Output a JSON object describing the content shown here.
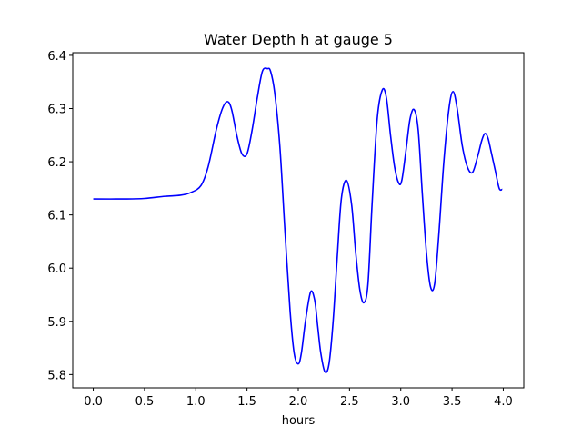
{
  "chart_data": {
    "type": "line",
    "title": "Water Depth h at gauge 5",
    "xlabel": "hours",
    "ylabel": "",
    "xlim": [
      -0.2,
      4.2
    ],
    "ylim": [
      5.775,
      6.405
    ],
    "xticks": [
      0.0,
      0.5,
      1.0,
      1.5,
      2.0,
      2.5,
      3.0,
      3.5,
      4.0
    ],
    "xtick_labels": [
      "0.0",
      "0.5",
      "1.0",
      "1.5",
      "2.0",
      "2.5",
      "3.0",
      "3.5",
      "4.0"
    ],
    "yticks": [
      5.8,
      5.9,
      6.0,
      6.1,
      6.2,
      6.3,
      6.4
    ],
    "ytick_labels": [
      "5.8",
      "5.9",
      "6.0",
      "6.1",
      "6.2",
      "6.3",
      "6.4"
    ],
    "grid": false,
    "series": [
      {
        "color": "#0000ff",
        "x": [
          0.0,
          0.3,
          0.5,
          0.7,
          0.85,
          0.95,
          1.05,
          1.12,
          1.2,
          1.26,
          1.31,
          1.35,
          1.4,
          1.45,
          1.5,
          1.55,
          1.6,
          1.65,
          1.7,
          1.73,
          1.77,
          1.82,
          1.87,
          1.92,
          1.96,
          2.0,
          2.03,
          2.07,
          2.12,
          2.16,
          2.19,
          2.22,
          2.26,
          2.3,
          2.34,
          2.38,
          2.42,
          2.47,
          2.52,
          2.56,
          2.6,
          2.64,
          2.68,
          2.72,
          2.77,
          2.82,
          2.86,
          2.9,
          2.94,
          2.98,
          3.01,
          3.05,
          3.09,
          3.13,
          3.17,
          3.21,
          3.25,
          3.29,
          3.33,
          3.37,
          3.42,
          3.47,
          3.51,
          3.55,
          3.6,
          3.65,
          3.7,
          3.75,
          3.79,
          3.82,
          3.85,
          3.88,
          3.92,
          3.96,
          3.99
        ],
        "y": [
          6.13,
          6.13,
          6.131,
          6.135,
          6.137,
          6.142,
          6.155,
          6.19,
          6.26,
          6.3,
          6.313,
          6.298,
          6.25,
          6.215,
          6.215,
          6.26,
          6.32,
          6.37,
          6.375,
          6.37,
          6.33,
          6.23,
          6.07,
          5.92,
          5.84,
          5.82,
          5.84,
          5.9,
          5.955,
          5.94,
          5.89,
          5.84,
          5.805,
          5.82,
          5.9,
          6.02,
          6.13,
          6.165,
          6.12,
          6.03,
          5.96,
          5.935,
          5.97,
          6.12,
          6.28,
          6.335,
          6.32,
          6.25,
          6.19,
          6.16,
          6.165,
          6.22,
          6.28,
          6.298,
          6.26,
          6.14,
          6.03,
          5.965,
          5.97,
          6.06,
          6.2,
          6.3,
          6.332,
          6.3,
          6.23,
          6.19,
          6.18,
          6.21,
          6.24,
          6.253,
          6.245,
          6.22,
          6.185,
          6.15,
          6.148
        ]
      }
    ]
  }
}
